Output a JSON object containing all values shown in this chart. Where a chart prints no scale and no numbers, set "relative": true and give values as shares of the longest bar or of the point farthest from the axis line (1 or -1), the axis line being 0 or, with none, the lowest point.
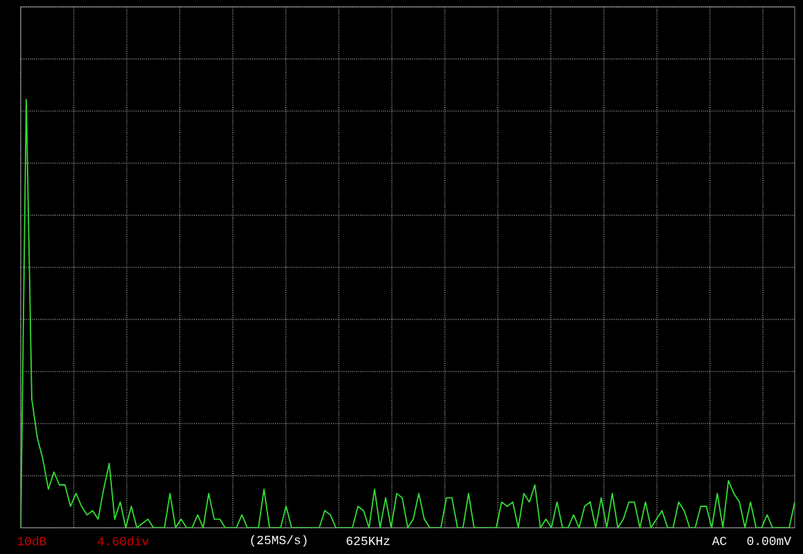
{
  "chart_data": {
    "type": "line",
    "relative": true,
    "grid": true,
    "categories": [
      null,
      null,
      null,
      null,
      null,
      null,
      null,
      null,
      null,
      null,
      null,
      null,
      null,
      null,
      null,
      null,
      null,
      null,
      null,
      null,
      null,
      null,
      null,
      null,
      null,
      null,
      null,
      null,
      null,
      null,
      null,
      null,
      null,
      null,
      null,
      null,
      null,
      null,
      null,
      null,
      null,
      null,
      null,
      null,
      null,
      null,
      null,
      null,
      null,
      null,
      null,
      null,
      null,
      null,
      null,
      null,
      null,
      null,
      null,
      null,
      null,
      null,
      null,
      null,
      null,
      null,
      null,
      null,
      null,
      null,
      null,
      null,
      null,
      null,
      null,
      null,
      null,
      null,
      null,
      null,
      null,
      null,
      null,
      null,
      null,
      null,
      null,
      null,
      null,
      null,
      null,
      null,
      null,
      null,
      null,
      null,
      null,
      null,
      null,
      null,
      null,
      null,
      null,
      null,
      null,
      null,
      null,
      null,
      null,
      null,
      null,
      null,
      null,
      null,
      null,
      null,
      null,
      null,
      null,
      null,
      null,
      null,
      null,
      null,
      null,
      null,
      null,
      null,
      null,
      null,
      null,
      null,
      null,
      null,
      null,
      null,
      null,
      null,
      null,
      null,
      null
    ],
    "series": [
      {
        "color": "#33dd33",
        "values": [
          0,
          1.0,
          0.3,
          0.21,
          0.16,
          0.09,
          0.13,
          0.1,
          0.1,
          0.05,
          0.08,
          0.05,
          0.03,
          0.04,
          0.02,
          0.09,
          0.15,
          0.02,
          0.06,
          0,
          0.05,
          0,
          0.01,
          0.02,
          0,
          0,
          0,
          0.08,
          0,
          0.02,
          0,
          0,
          0.03,
          0,
          0.08,
          0.02,
          0.02,
          0,
          0,
          0,
          0.03,
          0,
          0,
          0,
          0.09,
          0,
          0,
          0,
          0.05,
          0,
          0,
          0,
          0,
          0,
          0,
          0.04,
          0.03,
          0,
          0,
          0,
          0,
          0.05,
          0.04,
          0,
          0.09,
          0,
          0.07,
          0,
          0.08,
          0.07,
          0,
          0.02,
          0.08,
          0.02,
          0,
          0,
          0,
          0.07,
          0.07,
          0,
          0,
          0.08,
          0,
          0,
          0,
          0,
          0,
          0.06,
          0.05,
          0.06,
          0,
          0.08,
          0.06,
          0.1,
          0,
          0.02,
          0,
          0.06,
          0,
          0,
          0.03,
          0,
          0.05,
          0.06,
          0,
          0.07,
          0,
          0.08,
          0,
          0.02,
          0.06,
          0.06,
          0,
          0.06,
          0,
          0.02,
          0.04,
          0,
          0,
          0.06,
          0.04,
          0,
          0,
          0.05,
          0.05,
          0,
          0.08,
          0,
          0.11,
          0.08,
          0.06,
          0,
          0.06,
          0,
          0,
          0.03,
          0,
          0,
          0,
          0,
          0.06
        ]
      }
    ],
    "annotations": [
      "10dB",
      "4.60div",
      "(25MS/s)",
      "625KHz",
      "AC",
      "0.00mV"
    ]
  }
}
